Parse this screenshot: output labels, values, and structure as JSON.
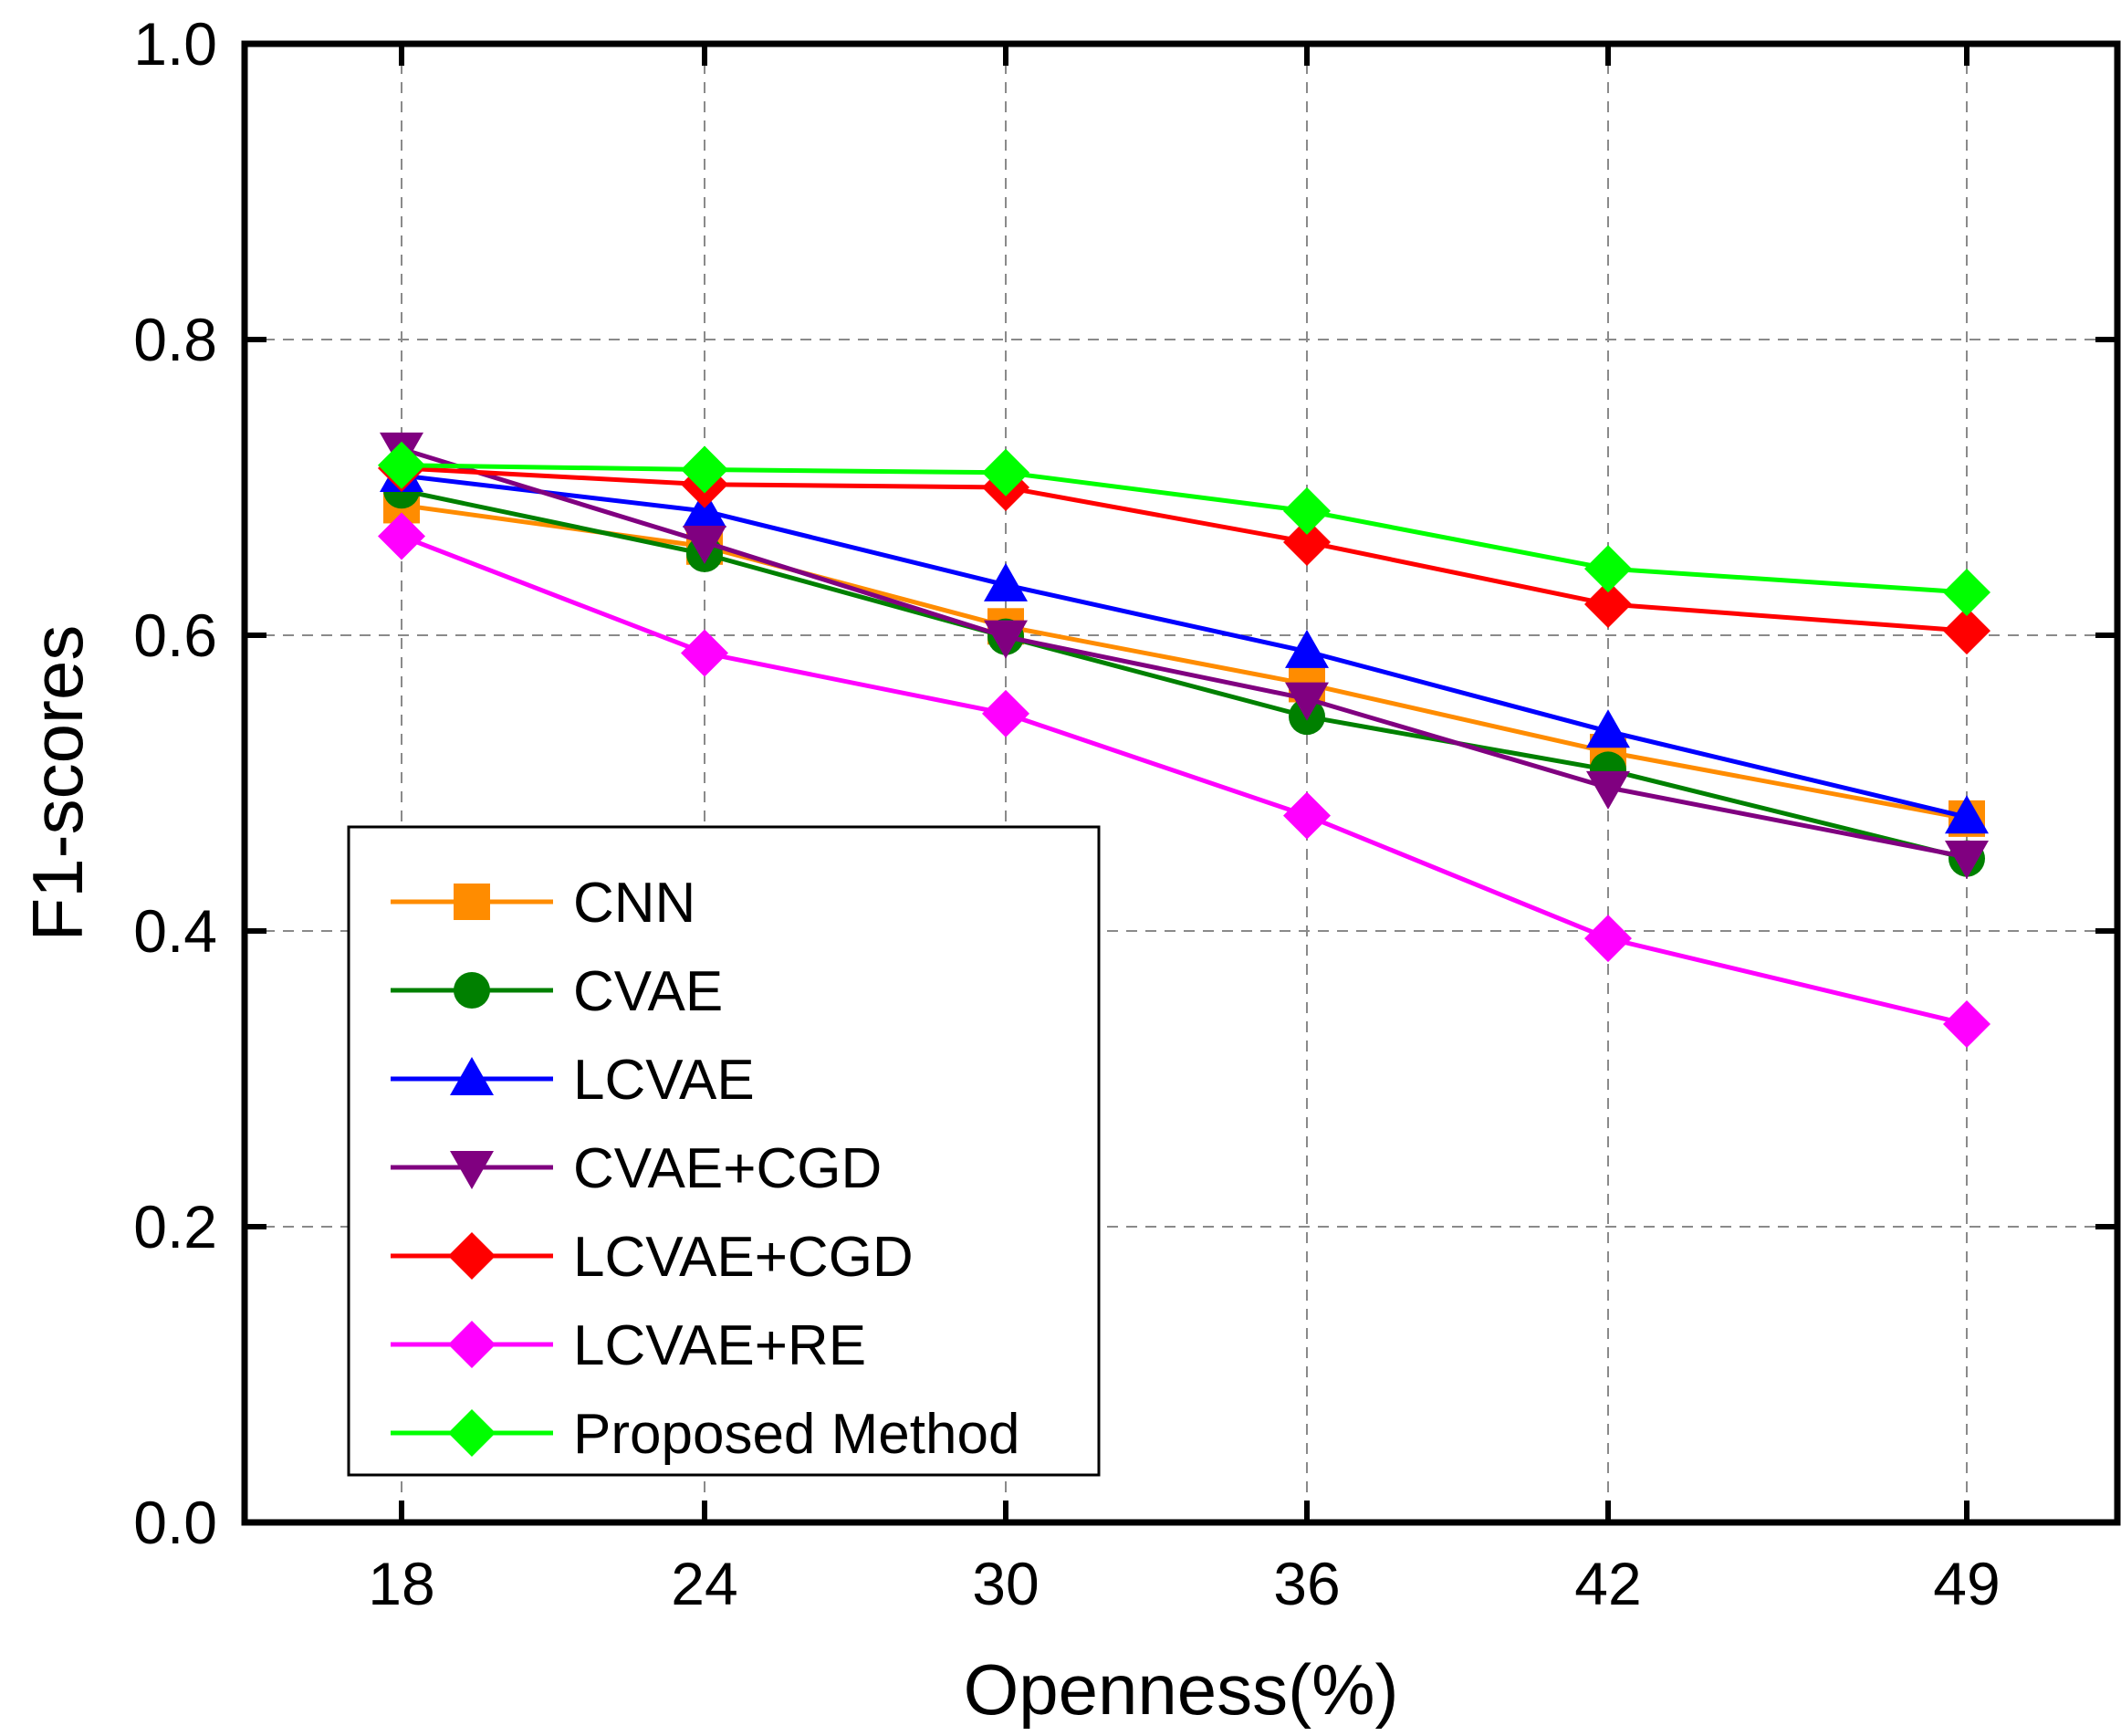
{
  "chart_data": {
    "type": "line",
    "title": "",
    "xlabel": "Openness(%)",
    "ylabel": "F1-scores",
    "x": [
      "18",
      "24",
      "30",
      "36",
      "42",
      "49"
    ],
    "ylim": [
      0.0,
      1.0
    ],
    "yticks": [
      "0.0",
      "0.2",
      "0.4",
      "0.6",
      "0.8",
      "1.0"
    ],
    "grid": true,
    "legend_position": "bottom-left",
    "series": [
      {
        "name": "CNN",
        "color": "#ff8c00",
        "marker": "square",
        "values": [
          0.688,
          0.66,
          0.606,
          0.567,
          0.521,
          0.476
        ]
      },
      {
        "name": "CVAE",
        "color": "#008000",
        "marker": "circle",
        "values": [
          0.698,
          0.655,
          0.599,
          0.545,
          0.509,
          0.449
        ]
      },
      {
        "name": "LCVAE",
        "color": "#0000ff",
        "marker": "triangle-up",
        "values": [
          0.708,
          0.684,
          0.634,
          0.589,
          0.535,
          0.477
        ]
      },
      {
        "name": "CVAE+CGD",
        "color": "#800080",
        "marker": "triangle-down",
        "values": [
          0.726,
          0.663,
          0.599,
          0.557,
          0.497,
          0.45
        ]
      },
      {
        "name": "LCVAE+CGD",
        "color": "#ff0000",
        "marker": "diamond",
        "values": [
          0.713,
          0.702,
          0.7,
          0.663,
          0.621,
          0.603
        ]
      },
      {
        "name": "LCVAE+RE",
        "color": "#ff00ff",
        "marker": "diamond",
        "values": [
          0.667,
          0.588,
          0.547,
          0.478,
          0.395,
          0.337
        ]
      },
      {
        "name": "Proposed Method",
        "color": "#00ff00",
        "marker": "diamond",
        "values": [
          0.715,
          0.712,
          0.71,
          0.684,
          0.645,
          0.629
        ]
      }
    ]
  }
}
